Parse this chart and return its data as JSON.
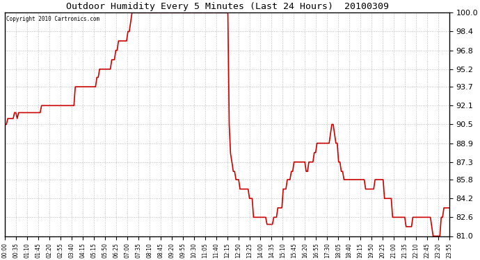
{
  "title": "Outdoor Humidity Every 5 Minutes (Last 24 Hours)  20100309",
  "copyright_text": "Copyright 2010 Cartronics.com",
  "line_color": "#cc0000",
  "background_color": "#ffffff",
  "plot_bg_color": "#ffffff",
  "grid_color": "#bbbbbb",
  "ylim": [
    81.0,
    100.0
  ],
  "yticks": [
    81.0,
    82.6,
    84.2,
    85.8,
    87.3,
    88.9,
    90.5,
    92.1,
    93.7,
    95.2,
    96.8,
    98.4,
    100.0
  ],
  "xtick_labels": [
    "00:00",
    "00:35",
    "01:10",
    "01:45",
    "02:20",
    "02:55",
    "03:40",
    "04:15",
    "05:15",
    "05:50",
    "06:25",
    "07:00",
    "07:35",
    "08:10",
    "08:45",
    "09:20",
    "09:55",
    "10:30",
    "11:05",
    "11:40",
    "12:15",
    "12:50",
    "13:25",
    "14:00",
    "14:35",
    "15:10",
    "15:45",
    "16:20",
    "16:55",
    "17:30",
    "18:05",
    "18:40",
    "19:15",
    "19:50",
    "20:25",
    "21:00",
    "21:35",
    "22:10",
    "22:45",
    "23:20",
    "23:55"
  ],
  "num_points": 288,
  "total_minutes": 1435,
  "y_values": [
    90.5,
    90.5,
    91.0,
    91.0,
    91.0,
    91.0,
    91.0,
    91.5,
    91.5,
    91.0,
    91.5,
    91.5,
    91.5,
    91.5,
    91.5,
    91.5,
    91.5,
    91.5,
    91.5,
    91.5,
    91.5,
    91.5,
    91.5,
    91.5,
    91.5,
    91.5,
    91.5,
    92.1,
    92.1,
    92.1,
    92.1,
    92.1,
    92.1,
    92.1,
    92.1,
    92.1,
    92.1,
    92.1,
    92.1,
    92.1,
    92.1,
    92.1,
    92.1,
    92.1,
    92.1,
    92.1,
    92.1,
    92.1,
    92.1,
    92.1,
    92.1,
    92.1,
    93.7,
    93.7,
    93.7,
    93.7,
    93.7,
    93.7,
    93.7,
    93.7,
    93.7,
    93.7,
    93.7,
    93.7,
    93.7,
    93.7,
    93.7,
    93.7,
    94.5,
    94.5,
    95.2,
    95.2,
    95.2,
    95.2,
    95.2,
    95.2,
    95.2,
    95.2,
    95.2,
    96.0,
    96.0,
    96.0,
    96.8,
    96.8,
    97.6,
    97.6,
    97.6,
    97.6,
    97.6,
    97.6,
    97.6,
    98.4,
    98.4,
    99.2,
    100.0,
    100.0,
    100.0,
    100.0,
    100.0,
    100.0,
    100.0,
    100.0,
    100.0,
    100.0,
    100.0,
    100.0,
    100.0,
    100.0,
    100.0,
    100.0,
    100.0,
    100.0,
    100.0,
    100.0,
    100.0,
    100.0,
    100.0,
    100.0,
    100.0,
    100.0,
    100.0,
    100.0,
    100.0,
    100.0,
    100.0,
    100.0,
    100.0,
    100.0,
    100.0,
    100.0,
    100.0,
    100.0,
    100.0,
    100.0,
    100.0,
    100.0,
    100.0,
    100.0,
    100.0,
    100.0,
    100.0,
    100.0,
    100.0,
    100.0,
    100.0,
    100.0,
    100.0,
    100.0,
    100.0,
    100.0,
    100.0,
    100.0,
    100.0,
    100.0,
    100.0,
    100.0,
    100.0,
    100.0,
    100.0,
    100.0,
    100.0,
    100.0,
    100.0,
    100.0,
    100.0,
    100.0,
    90.5,
    88.0,
    87.3,
    86.5,
    86.5,
    85.8,
    85.8,
    85.8,
    85.0,
    85.0,
    85.0,
    85.0,
    85.0,
    85.0,
    85.0,
    84.2,
    84.2,
    84.2,
    82.6,
    82.6,
    82.6,
    82.6,
    82.6,
    82.6,
    82.6,
    82.6,
    82.6,
    82.6,
    82.0,
    82.0,
    82.0,
    82.0,
    82.0,
    82.6,
    82.6,
    82.6,
    83.4,
    83.4,
    83.4,
    83.4,
    85.0,
    85.0,
    85.0,
    85.8,
    85.8,
    85.8,
    86.5,
    86.5,
    87.3,
    87.3,
    87.3,
    87.3,
    87.3,
    87.3,
    87.3,
    87.3,
    87.3,
    86.5,
    86.5,
    87.3,
    87.3,
    87.3,
    87.3,
    88.1,
    88.1,
    88.9,
    88.9,
    88.9,
    88.9,
    88.9,
    88.9,
    88.9,
    88.9,
    88.9,
    88.9,
    89.7,
    90.5,
    90.5,
    89.7,
    88.9,
    88.9,
    87.3,
    87.3,
    86.5,
    86.5,
    85.8,
    85.8,
    85.8,
    85.8,
    85.8,
    85.8,
    85.8,
    85.8,
    85.8,
    85.8,
    85.8,
    85.8,
    85.8,
    85.8,
    85.8,
    85.8,
    85.0,
    85.0,
    85.0,
    85.0,
    85.0,
    85.0,
    85.0,
    85.8,
    85.8,
    85.8,
    85.8,
    85.8,
    85.8,
    85.8,
    84.2,
    84.2,
    84.2,
    84.2,
    84.2,
    84.2,
    82.6,
    82.6,
    82.6,
    82.6,
    82.6,
    82.6,
    82.6,
    82.6,
    82.6,
    82.6,
    81.8,
    81.8,
    81.8,
    81.8,
    81.8,
    82.6,
    82.6,
    82.6,
    82.6,
    82.6,
    82.6,
    82.6,
    82.6,
    82.6,
    82.6,
    82.6,
    82.6,
    82.6,
    82.6,
    81.8,
    81.0,
    81.0,
    81.0,
    81.0,
    81.0,
    81.0,
    82.6,
    82.6,
    83.4,
    83.4,
    83.4,
    83.4,
    83.4
  ]
}
